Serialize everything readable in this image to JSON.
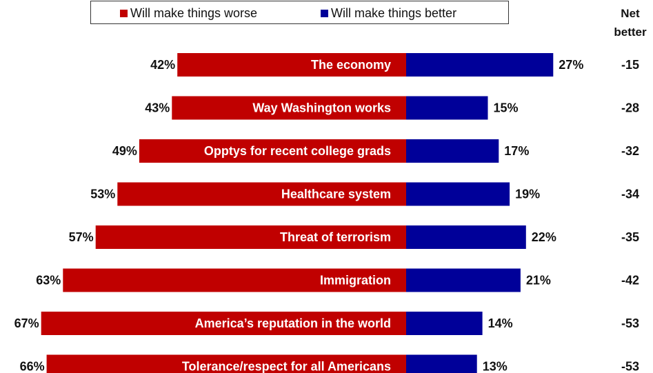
{
  "legend": {
    "worse_label": "Will make things worse",
    "better_label": "Will make things better"
  },
  "net_header": {
    "line1": "Net",
    "line2": "better"
  },
  "colors": {
    "worse": "#c00000",
    "better": "#000099"
  },
  "chart_data": {
    "type": "bar",
    "orientation": "horizontal-diverging",
    "categories": [
      "The economy",
      "Way Washington works",
      "Opptys for recent college grads",
      "Healthcare system",
      "Threat of terrorism",
      "Immigration",
      "America’s reputation in the world",
      "Tolerance/respect for all Americans"
    ],
    "series": [
      {
        "name": "Will make things worse",
        "values": [
          42,
          43,
          49,
          53,
          57,
          63,
          67,
          66
        ],
        "labels": [
          "42%",
          "43%",
          "49%",
          "53%",
          "57%",
          "63%",
          "67%",
          "66%"
        ]
      },
      {
        "name": "Will make things better",
        "values": [
          27,
          15,
          17,
          19,
          22,
          21,
          14,
          13
        ],
        "labels": [
          "27%",
          "15%",
          "17%",
          "19%",
          "22%",
          "21%",
          "14%",
          "13%"
        ]
      }
    ],
    "net_better": [
      "-15",
      "-28",
      "-32",
      "-34",
      "-35",
      "-42",
      "-53",
      "-53"
    ],
    "grid": false,
    "legend_position": "top"
  }
}
